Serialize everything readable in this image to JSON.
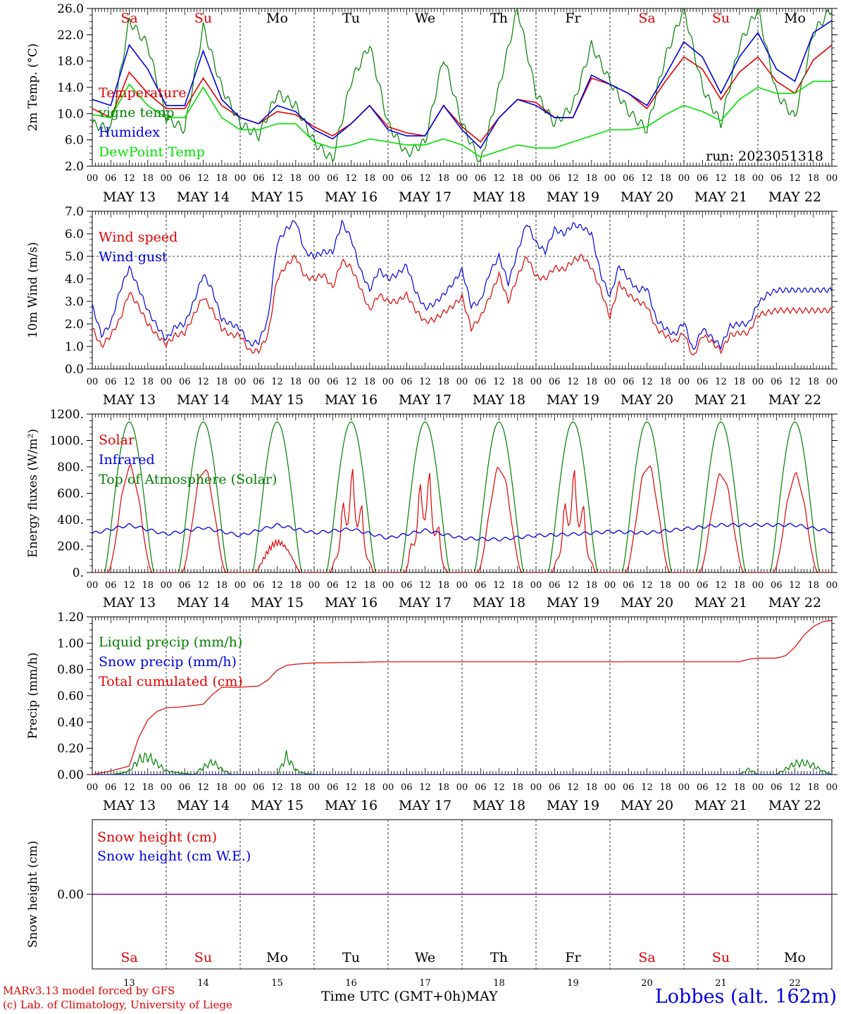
{
  "days": [
    "MAY 13",
    "MAY 14",
    "MAY 15",
    "MAY 16",
    "MAY 17",
    "MAY 18",
    "MAY 19",
    "MAY 20",
    "MAY 21",
    "MAY 22"
  ],
  "weekdays": [
    "Sa",
    "Su",
    "Mo",
    "Tu",
    "We",
    "Th",
    "Fr",
    "Sa",
    "Su",
    "Mo"
  ],
  "weekday_colors": [
    "#e00000",
    "#e00000",
    "#000000",
    "#000000",
    "#000000",
    "#000000",
    "#000000",
    "#e00000",
    "#e00000",
    "#000000"
  ],
  "day_numbers": [
    "13",
    "14",
    "15",
    "16",
    "17",
    "18",
    "19",
    "20",
    "21",
    "22"
  ],
  "hour_ticks": [
    "00",
    "06",
    "12",
    "18"
  ],
  "last_hour_tick": "00",
  "footer": {
    "model": "MARv3.13 model forced by GFS",
    "credit": "(c) Lab. of Climatology, University of Liege",
    "axis_title": "Time UTC (GMT+0h)",
    "month": "MAY",
    "station": "Lobbes (alt. 162m)"
  },
  "colors": {
    "red": "#e00000",
    "green": "#008000",
    "blue": "#0000e0",
    "lime": "#00e000",
    "purple": "#800080"
  },
  "chart_data": [
    {
      "type": "line",
      "ylabel": "2m Temp. (°C)",
      "ylim": [
        2,
        28
      ],
      "yticks": [
        "2.0",
        "6.0",
        "10.0",
        "14.0",
        "18.0",
        "22.0",
        "26.0"
      ],
      "annotation": "run: 2023051318",
      "x_unit": "hours since 2023-05-13 00 UTC",
      "series": [
        {
          "name": "Temperature",
          "color": "#e00000",
          "x": [
            0,
            6,
            12,
            18,
            24,
            30,
            36,
            42,
            48,
            54,
            60,
            66,
            72,
            78,
            84,
            90,
            96,
            102,
            108,
            114,
            120,
            126,
            132,
            138,
            144,
            150,
            156,
            162,
            168,
            174,
            180,
            186,
            192,
            198,
            204,
            210,
            216,
            222,
            228,
            234,
            240
          ],
          "y": [
            11.5,
            10,
            17.5,
            14,
            11.5,
            11.5,
            16.5,
            12,
            10,
            9,
            11,
            10.5,
            8.5,
            7,
            9,
            12,
            8.5,
            7.5,
            7,
            12,
            8.5,
            6,
            10,
            13,
            12.5,
            10,
            10,
            16.5,
            15.5,
            14,
            11.5,
            16,
            20,
            18,
            13,
            17.5,
            20,
            16,
            14,
            19.5,
            22
          ]
        },
        {
          "name": "vigne temp",
          "color": "#008000",
          "x": [
            0,
            6,
            12,
            18,
            24,
            30,
            36,
            42,
            48,
            54,
            60,
            66,
            72,
            78,
            84,
            90,
            96,
            102,
            108,
            114,
            120,
            126,
            132,
            138,
            144,
            150,
            156,
            162,
            168,
            174,
            180,
            186,
            192,
            198,
            204,
            210,
            216,
            222,
            228,
            234,
            240
          ],
          "y": [
            9,
            8,
            26,
            22,
            10,
            8,
            25,
            15,
            9,
            7,
            14,
            12,
            6,
            3,
            16,
            22,
            9,
            4,
            6,
            20,
            9,
            2.5,
            15,
            28,
            14,
            9,
            12,
            22,
            16,
            11,
            8,
            20,
            28,
            15,
            9,
            22,
            28,
            14,
            10,
            24,
            28
          ]
        },
        {
          "name": "Humidex",
          "color": "#0000e0",
          "x": [
            0,
            6,
            12,
            18,
            24,
            30,
            36,
            42,
            48,
            54,
            60,
            66,
            72,
            78,
            84,
            90,
            96,
            102,
            108,
            114,
            120,
            126,
            132,
            138,
            144,
            150,
            156,
            162,
            168,
            174,
            180,
            186,
            192,
            198,
            204,
            210,
            216,
            222,
            228,
            234,
            240
          ],
          "y": [
            13,
            12,
            22,
            18,
            12,
            12,
            21,
            13,
            10,
            9,
            12,
            11,
            8,
            6.5,
            9,
            12,
            8,
            7,
            7,
            12,
            8,
            5,
            10,
            13,
            12,
            10,
            10,
            17,
            15.5,
            14,
            12,
            17,
            22.5,
            20,
            14,
            20,
            24,
            18,
            16,
            24,
            26
          ]
        },
        {
          "name": "DewPoint Temp",
          "color": "#00e000",
          "x": [
            0,
            6,
            12,
            18,
            24,
            30,
            36,
            42,
            48,
            54,
            60,
            66,
            72,
            78,
            84,
            90,
            96,
            102,
            108,
            114,
            120,
            126,
            132,
            138,
            144,
            150,
            156,
            162,
            168,
            174,
            180,
            186,
            192,
            198,
            204,
            210,
            216,
            222,
            228,
            234,
            240
          ],
          "y": [
            10.5,
            10,
            15.5,
            12,
            10,
            10,
            15,
            10,
            8,
            8,
            9,
            9,
            6,
            5,
            5.5,
            6.5,
            6,
            5.5,
            5.5,
            6.5,
            5.5,
            3.5,
            4.5,
            5.5,
            5,
            5,
            6,
            7,
            8,
            8,
            8.5,
            10.5,
            12,
            11,
            9.5,
            13,
            15,
            14,
            14,
            16,
            16
          ]
        }
      ]
    },
    {
      "type": "line",
      "ylabel": "10m Wind (m/s)",
      "ylim": [
        0,
        7
      ],
      "yticks": [
        "0.0",
        "1.0",
        "2.0",
        "3.0",
        "4.0",
        "5.0",
        "6.0",
        "7.0"
      ],
      "dashed_y": 5,
      "x_unit": "hours since 2023-05-13 00 UTC",
      "series": [
        {
          "name": "Wind speed",
          "color": "#e00000",
          "x": [
            0,
            3,
            6,
            9,
            12,
            15,
            18,
            21,
            24,
            27,
            30,
            33,
            36,
            39,
            42,
            45,
            48,
            51,
            54,
            57,
            60,
            63,
            66,
            69,
            72,
            75,
            78,
            81,
            84,
            87,
            90,
            93,
            96,
            99,
            102,
            105,
            108,
            111,
            114,
            117,
            120,
            123,
            126,
            129,
            132,
            135,
            138,
            141,
            144,
            147,
            150,
            153,
            156,
            159,
            162,
            165,
            168,
            171,
            174,
            177,
            180,
            183,
            186,
            189,
            192,
            195,
            198,
            201,
            204,
            207,
            210,
            213,
            216,
            219,
            222,
            225,
            228,
            231,
            234,
            237,
            240
          ],
          "y": [
            1.8,
            1,
            1.5,
            2.2,
            3.4,
            2.8,
            2,
            1.5,
            1.1,
            1.5,
            1.6,
            2.4,
            3.2,
            2.6,
            1.8,
            1.5,
            1.5,
            0.8,
            0.8,
            1.5,
            4,
            4.6,
            5,
            4.1,
            4,
            4.2,
            3.6,
            4.8,
            4.5,
            3.6,
            2.6,
            3.3,
            3,
            3,
            3.3,
            2.6,
            2.1,
            2.2,
            2.5,
            2.8,
            3.2,
            1.8,
            2.3,
            3.2,
            4.2,
            3,
            4.1,
            5,
            4.1,
            4,
            4.5,
            4.4,
            4.8,
            5,
            4.5,
            3.5,
            2.3,
            3.8,
            3.3,
            3,
            2.8,
            1.8,
            1.5,
            1.2,
            1.6,
            0.5,
            1.5,
            1.2,
            0.8,
            1.5,
            1.6,
            1.6,
            2.4,
            2.5,
            2.6,
            2.6,
            2.6,
            2.6,
            2.6,
            2.6,
            2.6
          ]
        },
        {
          "name": "Wind gust",
          "color": "#0000e0",
          "x": [
            0,
            3,
            6,
            9,
            12,
            15,
            18,
            21,
            24,
            27,
            30,
            33,
            36,
            39,
            42,
            45,
            48,
            51,
            54,
            57,
            60,
            63,
            66,
            69,
            72,
            75,
            78,
            81,
            84,
            87,
            90,
            93,
            96,
            99,
            102,
            105,
            108,
            111,
            114,
            117,
            120,
            123,
            126,
            129,
            132,
            135,
            138,
            141,
            144,
            147,
            150,
            153,
            156,
            159,
            162,
            165,
            168,
            171,
            174,
            177,
            180,
            183,
            186,
            189,
            192,
            195,
            198,
            201,
            204,
            207,
            210,
            213,
            216,
            219,
            222,
            225,
            228,
            231,
            234,
            237,
            240
          ],
          "y": [
            2.8,
            1.5,
            2,
            3.5,
            4.5,
            3.6,
            2.6,
            1.9,
            1.3,
            1.9,
            2,
            3,
            4.2,
            3.5,
            2.2,
            2,
            1.8,
            1.1,
            1.2,
            2.2,
            5.6,
            6.2,
            6.6,
            5.2,
            5,
            5.2,
            5.2,
            6.5,
            5.8,
            4.4,
            3.5,
            4.4,
            4,
            4.2,
            4.6,
            3.4,
            2.7,
            2.9,
            3.3,
            3.8,
            4.4,
            2.8,
            3,
            4.3,
            5,
            3.8,
            5.2,
            6.5,
            5.6,
            5.2,
            6.2,
            6,
            6.4,
            6.3,
            6,
            4.2,
            3.2,
            4.6,
            4,
            3.5,
            3.6,
            2.2,
            1.8,
            1.5,
            2.1,
            0.8,
            1.8,
            1.4,
            1,
            1.9,
            2,
            2,
            2.9,
            3.3,
            3.5,
            3.5,
            3.5,
            3.5,
            3.5,
            3.5,
            3.5
          ]
        }
      ]
    },
    {
      "type": "line",
      "ylabel": "Energy fluxes (W/m²)",
      "ylim": [
        0,
        1200
      ],
      "yticks": [
        "0.",
        "200.",
        "400.",
        "600.",
        "800.",
        "1000.",
        "1200."
      ],
      "x_unit": "hours since 2023-05-13 00 UTC",
      "series": [
        {
          "name": "Solar",
          "color": "#e00000",
          "daily_peaks": [
            830,
            820,
            260,
            860,
            870,
            830,
            860,
            850,
            780,
            770
          ]
        },
        {
          "name": "Infrared",
          "color": "#0000e0",
          "x": [
            0,
            12,
            24,
            36,
            48,
            60,
            72,
            84,
            96,
            108,
            120,
            132,
            144,
            156,
            168,
            180,
            192,
            204,
            216,
            228,
            240
          ],
          "y": [
            295,
            360,
            290,
            340,
            280,
            360,
            300,
            330,
            260,
            320,
            260,
            250,
            280,
            290,
            310,
            300,
            330,
            360,
            360,
            360,
            310
          ]
        },
        {
          "name": "Top of Atmosphere (Solar)",
          "color": "#008000",
          "daily_peak": 1140
        }
      ]
    },
    {
      "type": "line",
      "ylabel": "Precip (mm/h)",
      "ylim": [
        0,
        1.3
      ],
      "yticks": [
        "0.00",
        "0.20",
        "0.40",
        "0.60",
        "0.80",
        "1.00",
        "1.20"
      ],
      "x_unit": "hours since 2023-05-13 00 UTC",
      "series": [
        {
          "name": "Liquid precip (mm/h)",
          "color": "#008000",
          "x": [
            0,
            6,
            9,
            12,
            15,
            18,
            21,
            24,
            30,
            33,
            36,
            39,
            42,
            45,
            48,
            54,
            60,
            63,
            66,
            69,
            72,
            96,
            120,
            144,
            168,
            192,
            210,
            213,
            216,
            222,
            225,
            228,
            231,
            234,
            237,
            240
          ],
          "y": [
            0,
            0,
            0.01,
            0.04,
            0.16,
            0.2,
            0.12,
            0.04,
            0.01,
            0,
            0.08,
            0.14,
            0.06,
            0,
            0,
            0,
            0,
            0.2,
            0.05,
            0.01,
            0,
            0,
            0,
            0,
            0,
            0,
            0,
            0.06,
            0,
            0,
            0.06,
            0.12,
            0.13,
            0.1,
            0.04,
            0
          ]
        },
        {
          "name": "Snow precip (mm/h)",
          "color": "#0000e0",
          "x": [
            0,
            240
          ],
          "y": [
            0,
            0
          ]
        },
        {
          "name": "Total cumulated (cm)",
          "color": "#e00000",
          "x": [
            0,
            6,
            9,
            12,
            15,
            18,
            21,
            24,
            30,
            33,
            36,
            39,
            42,
            48,
            54,
            57,
            60,
            63,
            66,
            72,
            96,
            120,
            144,
            168,
            192,
            210,
            213,
            216,
            222,
            225,
            228,
            231,
            234,
            237,
            240
          ],
          "y": [
            0,
            0.03,
            0.05,
            0.07,
            0.3,
            0.45,
            0.52,
            0.55,
            0.56,
            0.57,
            0.58,
            0.66,
            0.72,
            0.72,
            0.73,
            0.78,
            0.86,
            0.9,
            0.91,
            0.92,
            0.93,
            0.93,
            0.93,
            0.93,
            0.93,
            0.93,
            0.95,
            0.96,
            0.96,
            0.98,
            1.05,
            1.15,
            1.22,
            1.26,
            1.27
          ]
        }
      ]
    },
    {
      "type": "line",
      "ylabel": "Snow height (cm)",
      "yticks": [
        "0.00"
      ],
      "x_unit": "hours since 2023-05-13 00 UTC",
      "series": [
        {
          "name": "Snow height (cm)",
          "color": "#e00000",
          "x": [
            0,
            240
          ],
          "y": [
            0,
            0
          ]
        },
        {
          "name": "Snow height (cm W.E.)",
          "color": "#0000e0",
          "x": [
            0,
            240
          ],
          "y": [
            0,
            0
          ]
        }
      ]
    }
  ]
}
